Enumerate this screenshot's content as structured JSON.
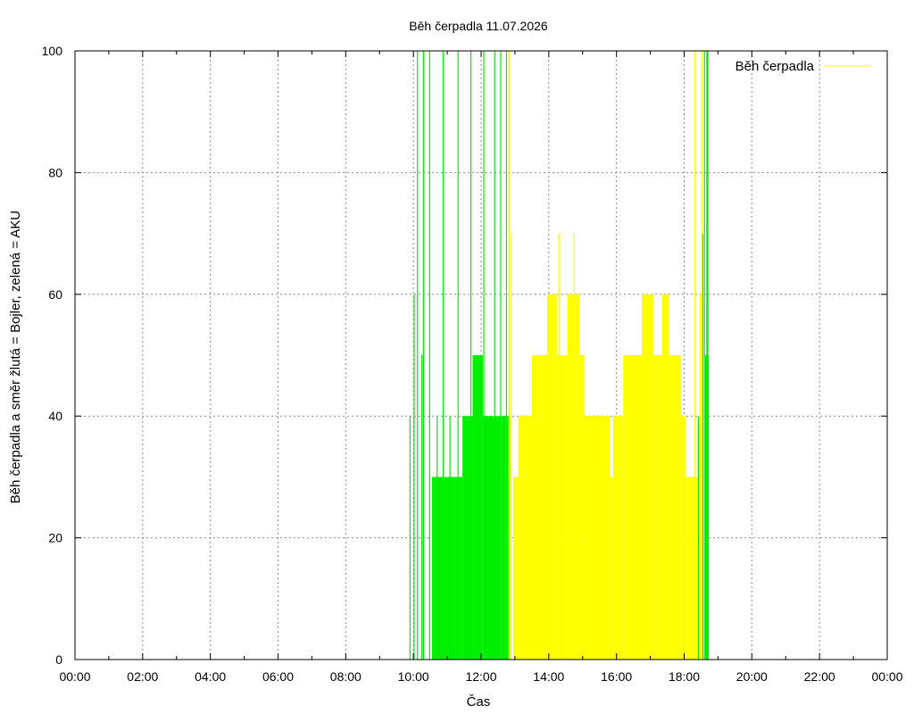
{
  "chart_data": {
    "type": "bar",
    "title": "Běh čerpadla 11.07.2026",
    "xlabel": "Čas",
    "ylabel": "Běh čerpadla a směr žlutá = Bojler, zelená = AKU",
    "xlim": [
      0,
      24
    ],
    "ylim": [
      0,
      100
    ],
    "x_ticks": [
      "00:00",
      "02:00",
      "04:00",
      "06:00",
      "08:00",
      "10:00",
      "12:00",
      "14:00",
      "16:00",
      "18:00",
      "20:00",
      "22:00",
      "00:00"
    ],
    "y_ticks": [
      "0",
      "20",
      "40",
      "60",
      "80",
      "100"
    ],
    "grid": true,
    "legend": {
      "position": "top-right",
      "entries": [
        "Běh čerpadla"
      ]
    },
    "colors": {
      "bojler": "#ffff00",
      "aku": "#00ee00"
    },
    "series": [
      {
        "name": "Běh čerpadla",
        "x_unit": "hours",
        "green": {
          "spikes": [
            [
              9.9,
              40
            ],
            [
              10.02,
              60
            ],
            [
              10.12,
              100
            ],
            [
              10.25,
              50
            ],
            [
              10.3,
              100
            ],
            [
              10.48,
              100
            ],
            [
              10.7,
              40
            ],
            [
              10.88,
              100
            ],
            [
              11.08,
              40
            ],
            [
              11.32,
              100
            ],
            [
              11.7,
              100
            ],
            [
              12.08,
              100
            ],
            [
              12.4,
              100
            ],
            [
              12.58,
              100
            ],
            [
              12.75,
              100
            ],
            [
              12.82,
              100
            ],
            [
              18.42,
              40
            ],
            [
              18.55,
              70
            ],
            [
              18.6,
              100
            ],
            [
              18.67,
              100
            ],
            [
              18.7,
              100
            ]
          ],
          "blocks": [
            [
              10.55,
              11.25,
              30
            ],
            [
              11.25,
              11.45,
              30
            ],
            [
              11.45,
              11.75,
              40
            ],
            [
              11.75,
              12.05,
              50
            ],
            [
              12.05,
              12.6,
              40
            ],
            [
              12.6,
              12.85,
              40
            ],
            [
              18.62,
              18.73,
              50
            ]
          ]
        },
        "yellow": {
          "blocks": [
            [
              12.95,
              13.1,
              30
            ],
            [
              13.1,
              13.5,
              40
            ],
            [
              13.5,
              13.95,
              50
            ],
            [
              13.95,
              14.25,
              60
            ],
            [
              14.25,
              14.55,
              50
            ],
            [
              14.55,
              14.9,
              60
            ],
            [
              14.9,
              15.05,
              50
            ],
            [
              15.05,
              15.8,
              40
            ],
            [
              15.8,
              15.9,
              30
            ],
            [
              15.9,
              16.2,
              40
            ],
            [
              16.2,
              16.75,
              50
            ],
            [
              16.75,
              17.1,
              60
            ],
            [
              17.1,
              17.35,
              50
            ],
            [
              17.35,
              17.55,
              60
            ],
            [
              17.55,
              17.9,
              50
            ],
            [
              17.9,
              18.05,
              40
            ],
            [
              18.05,
              18.25,
              30
            ],
            [
              18.25,
              18.4,
              30
            ]
          ],
          "spikes": [
            [
              12.82,
              100
            ],
            [
              12.9,
              70
            ],
            [
              14.3,
              70
            ],
            [
              14.75,
              70
            ],
            [
              18.32,
              100
            ],
            [
              18.48,
              60
            ],
            [
              18.52,
              100
            ]
          ]
        }
      }
    ]
  }
}
